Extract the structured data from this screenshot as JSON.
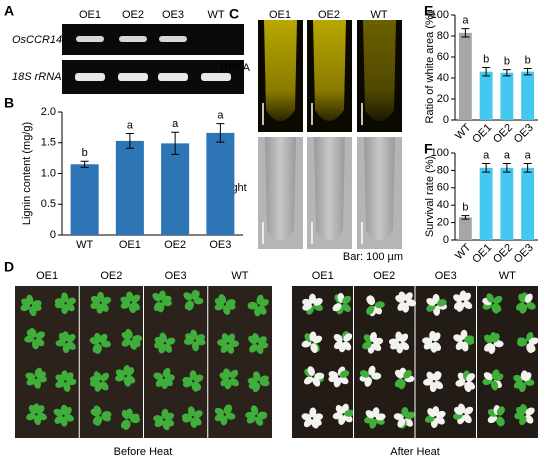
{
  "panels": {
    "a": {
      "letter": "A",
      "lanes": [
        "OE1",
        "OE2",
        "OE3",
        "WT"
      ],
      "rows": [
        "OsCCR14",
        "18S rRNA"
      ]
    },
    "b": {
      "letter": "B"
    },
    "c": {
      "letter": "C",
      "columns": [
        "OE1",
        "OE2",
        "WT"
      ],
      "rows": [
        "DPBA",
        "Bright"
      ],
      "scale": "Bar: 100 µm"
    },
    "d": {
      "letter": "D",
      "left_lanes": [
        "OE1",
        "OE2",
        "OE3",
        "WT"
      ],
      "right_lanes": [
        "OE1",
        "OE2",
        "OE3",
        "WT"
      ],
      "left_caption": "Before Heat",
      "right_caption": "After Heat"
    },
    "e": {
      "letter": "E"
    },
    "f": {
      "letter": "F"
    }
  },
  "chart_data": [
    {
      "type": "bar",
      "y_label": "Lignin content (mg/g)",
      "categories": [
        "WT",
        "OE1",
        "OE2",
        "OE3"
      ],
      "values": [
        1.15,
        1.53,
        1.49,
        1.66
      ],
      "errors": [
        0.05,
        0.12,
        0.18,
        0.15
      ],
      "annotations": [
        "b",
        "a",
        "a",
        "a"
      ],
      "colors": [
        "#2e75b6",
        "#2e75b6",
        "#2e75b6",
        "#2e75b6"
      ],
      "ylim": [
        0,
        2
      ],
      "yticks": [
        0,
        0.5,
        {
          "value": 1,
          "label": "1.0"
        },
        1.5,
        {
          "value": 2,
          "label": "2.0"
        }
      ]
    },
    {
      "type": "bar",
      "y_label": "Ratio of white area (%)",
      "categories": [
        "WT",
        "OE1",
        "OE2",
        "OE3"
      ],
      "values": [
        83,
        46,
        45,
        46
      ],
      "errors": [
        4,
        4,
        3,
        3
      ],
      "annotations": [
        "a",
        "b",
        "b",
        "b"
      ],
      "colors": [
        "#a6a6a6",
        "#45c8ef",
        "#45c8ef",
        "#45c8ef"
      ],
      "ylim": [
        0,
        100
      ],
      "yticks": [
        0,
        20,
        40,
        60,
        80,
        100
      ]
    },
    {
      "type": "bar",
      "y_label": "Survival rate (%)",
      "categories": [
        "WT",
        "OE1",
        "OE2",
        "OE3"
      ],
      "values": [
        26,
        83,
        83,
        83
      ],
      "errors": [
        2,
        5,
        5,
        5
      ],
      "annotations": [
        "b",
        "a",
        "a",
        "a"
      ],
      "colors": [
        "#a6a6a6",
        "#45c8ef",
        "#45c8ef",
        "#45c8ef"
      ],
      "ylim": [
        0,
        100
      ],
      "yticks": [
        0,
        20,
        40,
        60,
        80,
        100
      ]
    }
  ]
}
